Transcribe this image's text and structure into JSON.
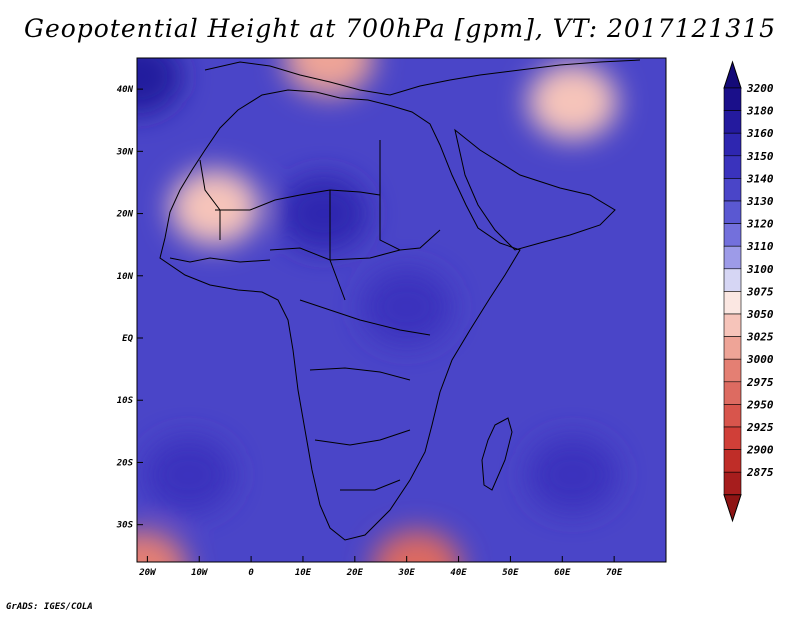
{
  "title": "Geopotential Height at 700hPa [gpm], VT: 2017121315",
  "footer": "GrADS: IGES/COLA",
  "map": {
    "region": "Africa and surrounding oceans",
    "lon_range": [
      -22,
      80
    ],
    "lat_range": [
      -36,
      45
    ],
    "x_ticks": [
      {
        "lon": -20,
        "label": "20W"
      },
      {
        "lon": -10,
        "label": "10W"
      },
      {
        "lon": 0,
        "label": "0"
      },
      {
        "lon": 10,
        "label": "10E"
      },
      {
        "lon": 20,
        "label": "20E"
      },
      {
        "lon": 30,
        "label": "30E"
      },
      {
        "lon": 40,
        "label": "40E"
      },
      {
        "lon": 50,
        "label": "50E"
      },
      {
        "lon": 60,
        "label": "60E"
      },
      {
        "lon": 70,
        "label": "70E"
      }
    ],
    "y_ticks": [
      {
        "lat": 40,
        "label": "40N"
      },
      {
        "lat": 30,
        "label": "30N"
      },
      {
        "lat": 20,
        "label": "20N"
      },
      {
        "lat": 10,
        "label": "10N"
      },
      {
        "lat": 0,
        "label": "EQ"
      },
      {
        "lat": -10,
        "label": "10S"
      },
      {
        "lat": -20,
        "label": "20S"
      },
      {
        "lat": -30,
        "label": "30S"
      }
    ]
  },
  "colorbar": {
    "levels": [
      {
        "label": "3200",
        "color": "#1a0f8a"
      },
      {
        "label": "3180",
        "color": "#241a9e"
      },
      {
        "label": "3160",
        "color": "#2e26b0"
      },
      {
        "label": "3150",
        "color": "#3a33bd"
      },
      {
        "label": "3140",
        "color": "#4a45c8"
      },
      {
        "label": "3130",
        "color": "#5a58d2"
      },
      {
        "label": "3120",
        "color": "#7370dc"
      },
      {
        "label": "3110",
        "color": "#9d9be8"
      },
      {
        "label": "3100",
        "color": "#d6d6f4"
      },
      {
        "label": "3075",
        "color": "#fbe7e2"
      },
      {
        "label": "3050",
        "color": "#f6c4ba"
      },
      {
        "label": "3025",
        "color": "#eea497"
      },
      {
        "label": "3000",
        "color": "#e47f73"
      },
      {
        "label": "2975",
        "color": "#dd6b61"
      },
      {
        "label": "2950",
        "color": "#d8554c"
      },
      {
        "label": "2925",
        "color": "#d03f38"
      },
      {
        "label": "2900",
        "color": "#bf2d28"
      },
      {
        "label": "2875",
        "color": "#a61d1d"
      }
    ],
    "top_triangle_color": "#140a78",
    "bottom_triangle_color": "#8e1414"
  },
  "field_blobs": [
    {
      "name": "high-north-atlantic",
      "lon": -22,
      "lat": 42,
      "value": 3195
    },
    {
      "name": "high-sahara",
      "lon": 14,
      "lat": 20,
      "value": 3160
    },
    {
      "name": "high-arabia-south",
      "lon": 30,
      "lat": 5,
      "value": 3150
    },
    {
      "name": "high-south-atlantic",
      "lon": -12,
      "lat": -22,
      "value": 3150
    },
    {
      "name": "high-indian-ocean",
      "lon": 62,
      "lat": -22,
      "value": 3155
    },
    {
      "name": "low-west-sahara",
      "lon": -7,
      "lat": 21,
      "value": 3060
    },
    {
      "name": "low-mediterranean",
      "lon": 15,
      "lat": 45,
      "value": 3040
    },
    {
      "name": "low-middle-east",
      "lon": 62,
      "lat": 38,
      "value": 3060
    },
    {
      "name": "low-south-africa-coast",
      "lon": 32,
      "lat": -37,
      "value": 2990
    },
    {
      "name": "low-southwest-corner",
      "lon": -21,
      "lat": -37,
      "value": 3020
    }
  ]
}
